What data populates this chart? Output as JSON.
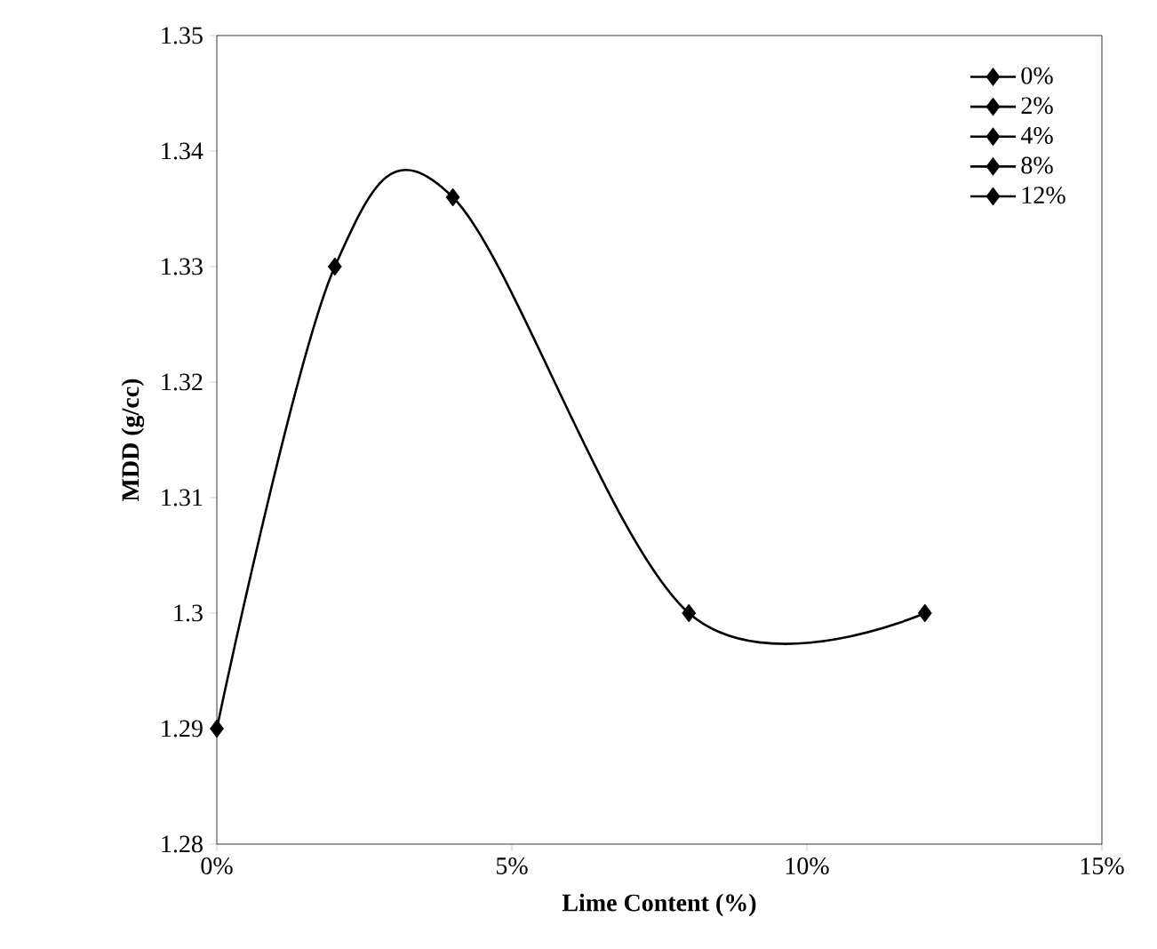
{
  "chart_data": {
    "type": "line",
    "xlabel": "Lime Content (%)",
    "ylabel": "MDD (g/cc)",
    "xlim": [
      0,
      15
    ],
    "xticks": [
      {
        "value": 0,
        "label": "0%"
      },
      {
        "value": 5,
        "label": "5%"
      },
      {
        "value": 10,
        "label": "10%"
      },
      {
        "value": 15,
        "label": "15%"
      }
    ],
    "ylim": [
      1.28,
      1.35
    ],
    "yticks": [
      1.28,
      1.29,
      1.3,
      1.31,
      1.32,
      1.33,
      1.34,
      1.35
    ],
    "grid": false,
    "legend": "top right",
    "marker": "diamond",
    "series": [
      {
        "color": "#000000",
        "x": [
          0,
          2,
          4,
          8,
          12
        ],
        "values": [
          1.29,
          1.33,
          1.336,
          1.3,
          1.3
        ],
        "marker": "none"
      },
      {
        "type": "scatter",
        "name": "0%",
        "color": "#000000",
        "x": [
          0
        ],
        "values": [
          1.29
        ]
      },
      {
        "type": "scatter",
        "name": "2%",
        "color": "#000000",
        "x": [
          2
        ],
        "values": [
          1.33
        ]
      },
      {
        "type": "scatter",
        "name": "4%",
        "color": "#000000",
        "x": [
          4
        ],
        "values": [
          1.336
        ]
      },
      {
        "type": "scatter",
        "name": "8%",
        "color": "#000000",
        "x": [
          8
        ],
        "values": [
          1.3
        ]
      },
      {
        "type": "scatter",
        "name": "12%",
        "color": "#000000",
        "x": [
          12
        ],
        "values": [
          1.3
        ]
      }
    ]
  }
}
